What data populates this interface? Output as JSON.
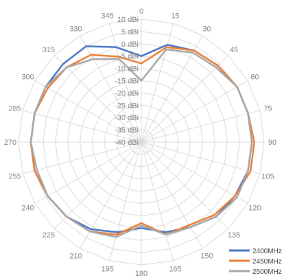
{
  "chart_data": {
    "type": "radar",
    "categories": [
      "0",
      "15",
      "30",
      "45",
      "60",
      "75",
      "90",
      "105",
      "120",
      "135",
      "150",
      "165",
      "180",
      "195",
      "210",
      "225",
      "240",
      "255",
      "270",
      "285",
      "300",
      "315",
      "330",
      "345"
    ],
    "radial_ticks": [
      "10 dBi",
      "5 dBi",
      "0 dBi",
      "-5 dBi",
      "-10 dBi",
      "-15 dBi",
      "-20 dBi",
      "-25 dBi",
      "-30 dBi",
      "-35 dBi",
      "-40 dBi"
    ],
    "rlim": [
      -40,
      10
    ],
    "gridlines": true,
    "legend_position": "bottom-right",
    "series": [
      {
        "name": "2400MHz",
        "color": "#4472C4",
        "values": [
          -5,
          1,
          3,
          4,
          5,
          5,
          5,
          5,
          4,
          3,
          0,
          -2,
          -5,
          -2,
          1,
          3,
          4,
          5,
          5,
          5,
          5,
          5,
          5,
          0
        ]
      },
      {
        "name": "2450MHz",
        "color": "#ED7D31",
        "values": [
          -8,
          0,
          3,
          4,
          5,
          5,
          6,
          6,
          4,
          2,
          -1,
          -1,
          -7,
          -1,
          2,
          3,
          4,
          5,
          5,
          5,
          4,
          3,
          1,
          -4
        ]
      },
      {
        "name": "2500MHz",
        "color": "#A5A5A5",
        "values": [
          -15,
          -1,
          2,
          3,
          5,
          5,
          5,
          5,
          5,
          3,
          0,
          -1,
          -6,
          0,
          2,
          3,
          4,
          4,
          5,
          5,
          5,
          3,
          -1,
          -5
        ]
      }
    ]
  }
}
